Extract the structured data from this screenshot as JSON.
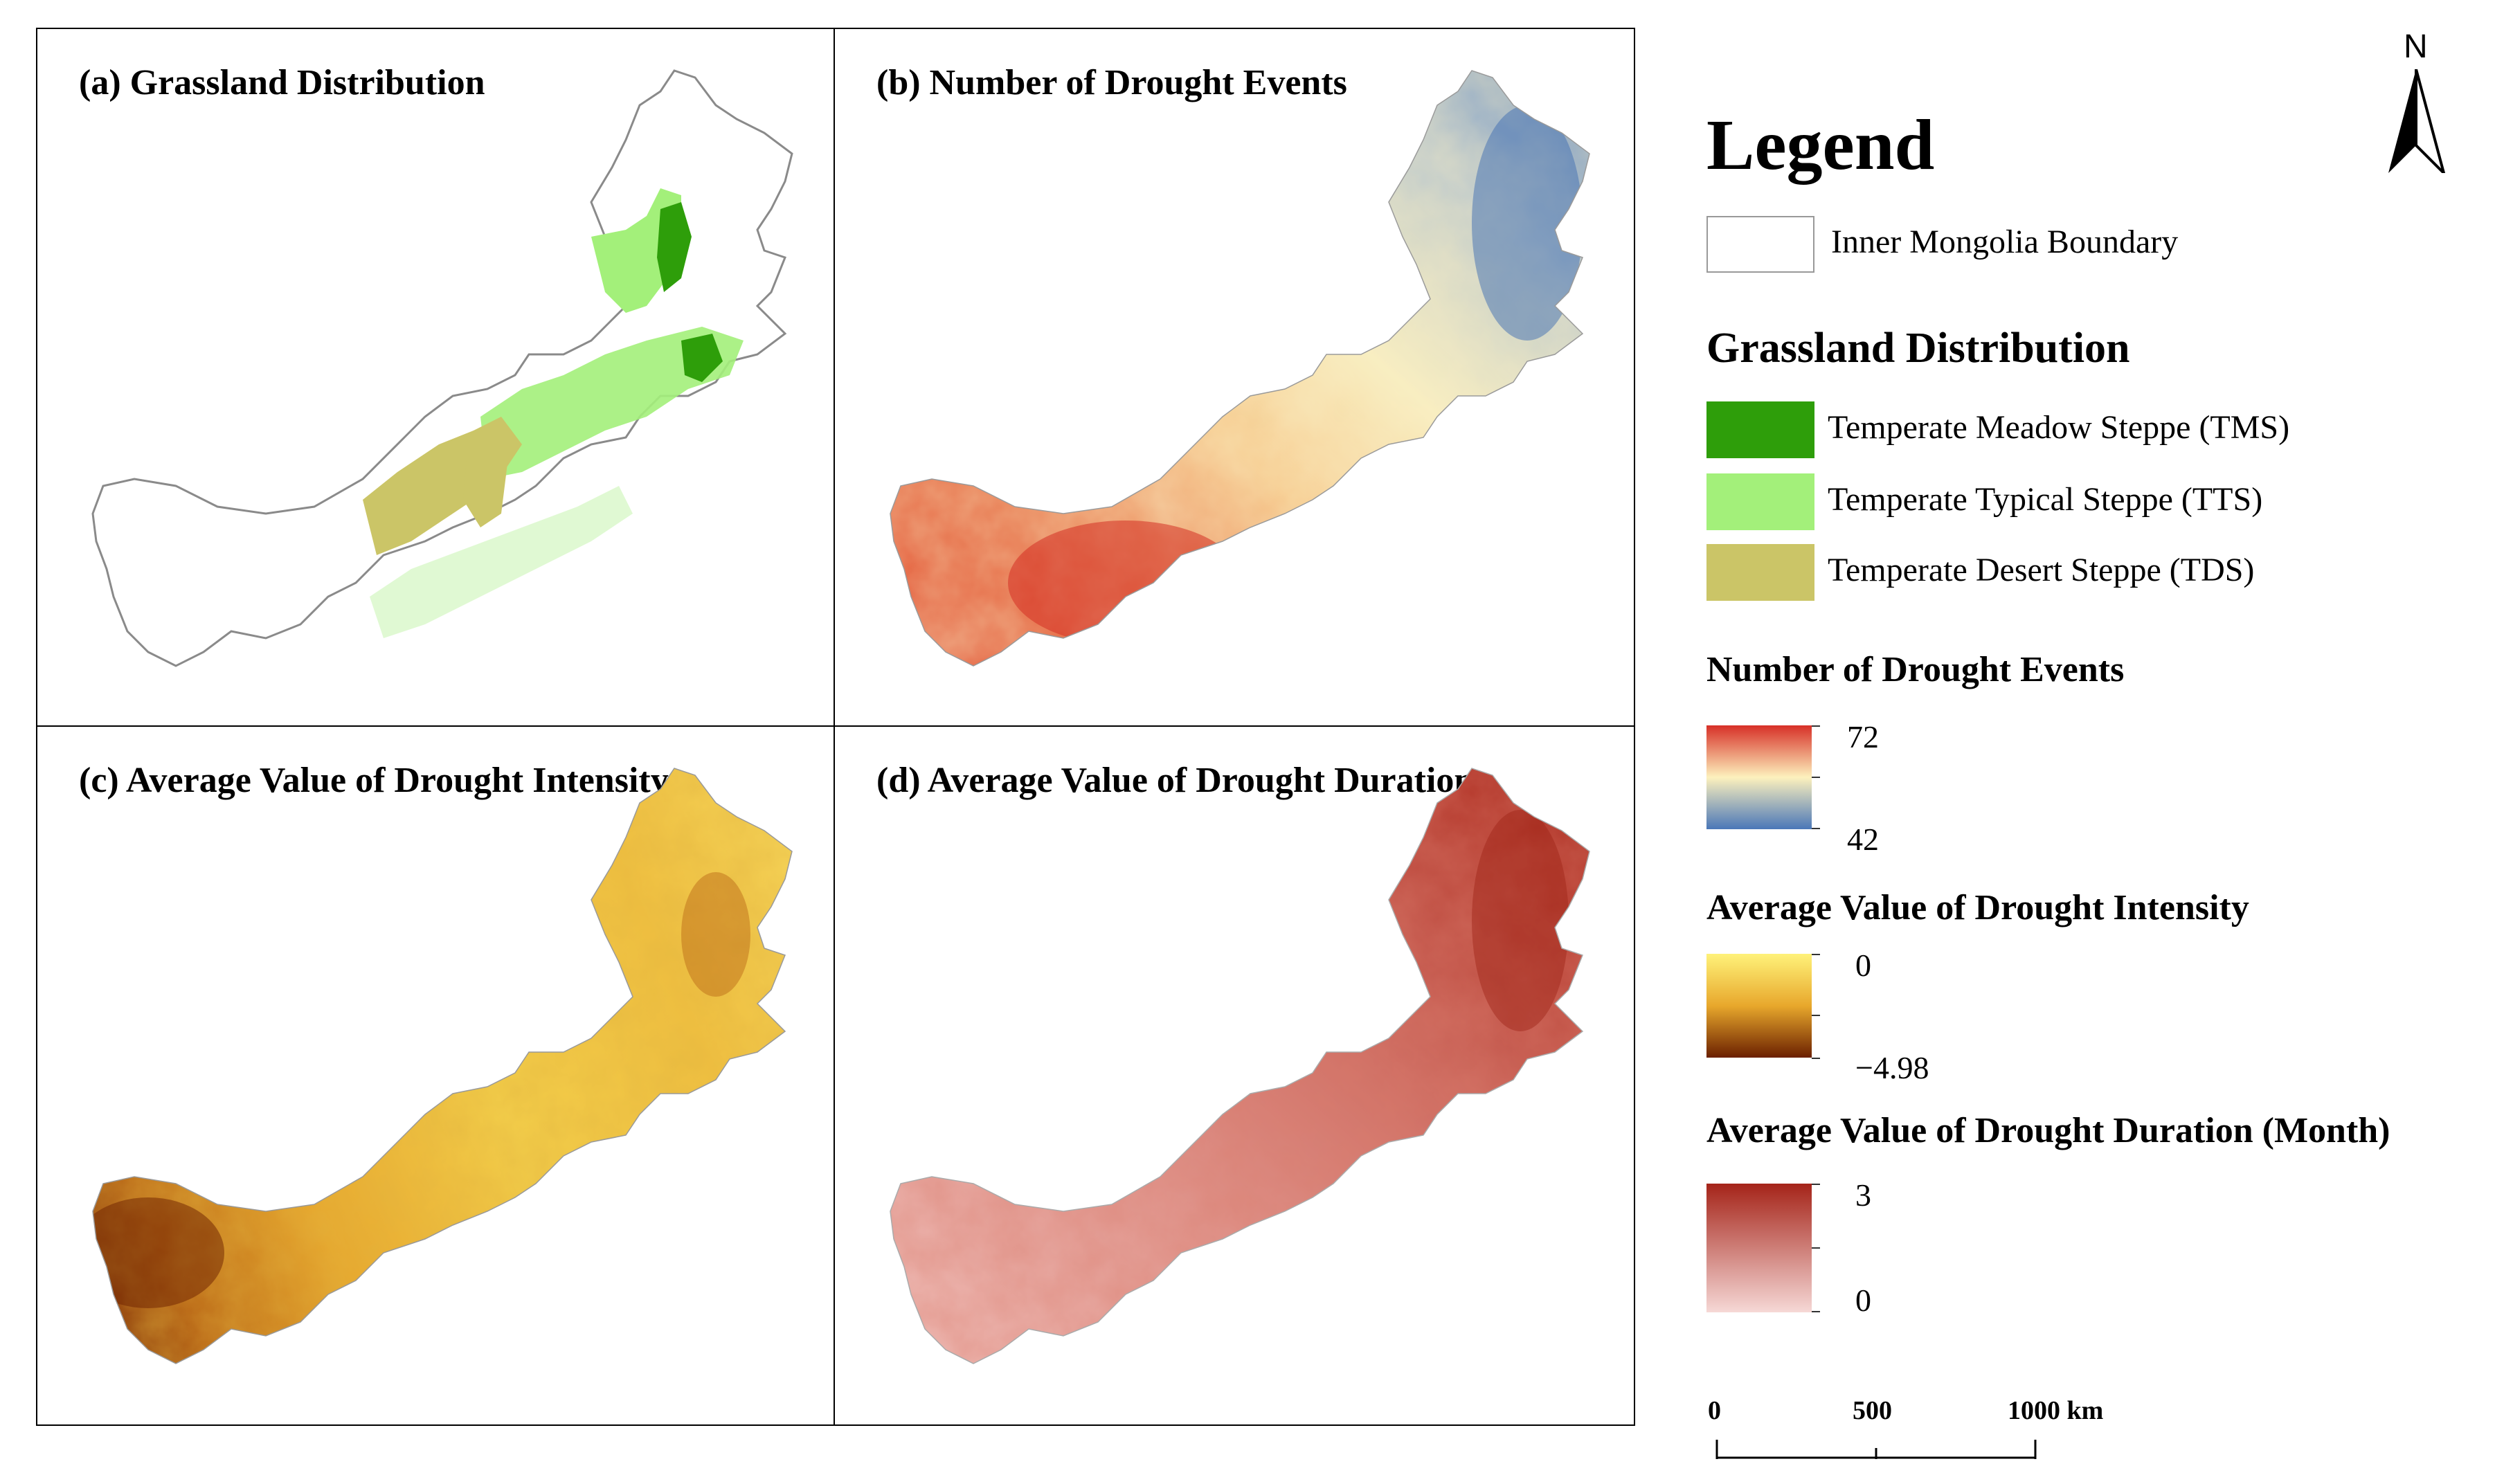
{
  "panels": {
    "a": {
      "title": "(a) Grassland Distribution"
    },
    "b": {
      "title": "(b) Number of Drought Events"
    },
    "c": {
      "title": "(c) Average Value of  Drought Intensity"
    },
    "d": {
      "title": "(d) Average Value of Drought Duration"
    }
  },
  "north_arrow": {
    "label": "N"
  },
  "legend": {
    "title": "Legend",
    "boundary_label": "Inner Mongolia Boundary",
    "grassland": {
      "title": "Grassland Distribution",
      "items": [
        {
          "label": "Temperate Meadow Steppe (TMS)",
          "color": "#2e9e0a"
        },
        {
          "label": "Temperate Typical Steppe (TTS)",
          "color": "#a3f07a"
        },
        {
          "label": "Temperate Desert Steppe (TDS)",
          "color": "#cbc567"
        }
      ]
    },
    "drought_events": {
      "title": "Number of Drought Events",
      "max": "72",
      "min": "42",
      "colors": [
        "#d73027",
        "#fdf1bd",
        "#4a77b8"
      ]
    },
    "intensity": {
      "title": "Average Value of Drought Intensity",
      "max": "0",
      "min": "−4.98",
      "colors": [
        "#fff27a",
        "#e8a82c",
        "#6b2000"
      ]
    },
    "duration": {
      "title": "Average Value of Drought Duration (Month)",
      "max": "3",
      "min": "0",
      "colors": [
        "#a52419",
        "#f6d8d6"
      ]
    }
  },
  "scale_bar": {
    "labels": [
      "0",
      "500",
      "1000 km"
    ]
  }
}
